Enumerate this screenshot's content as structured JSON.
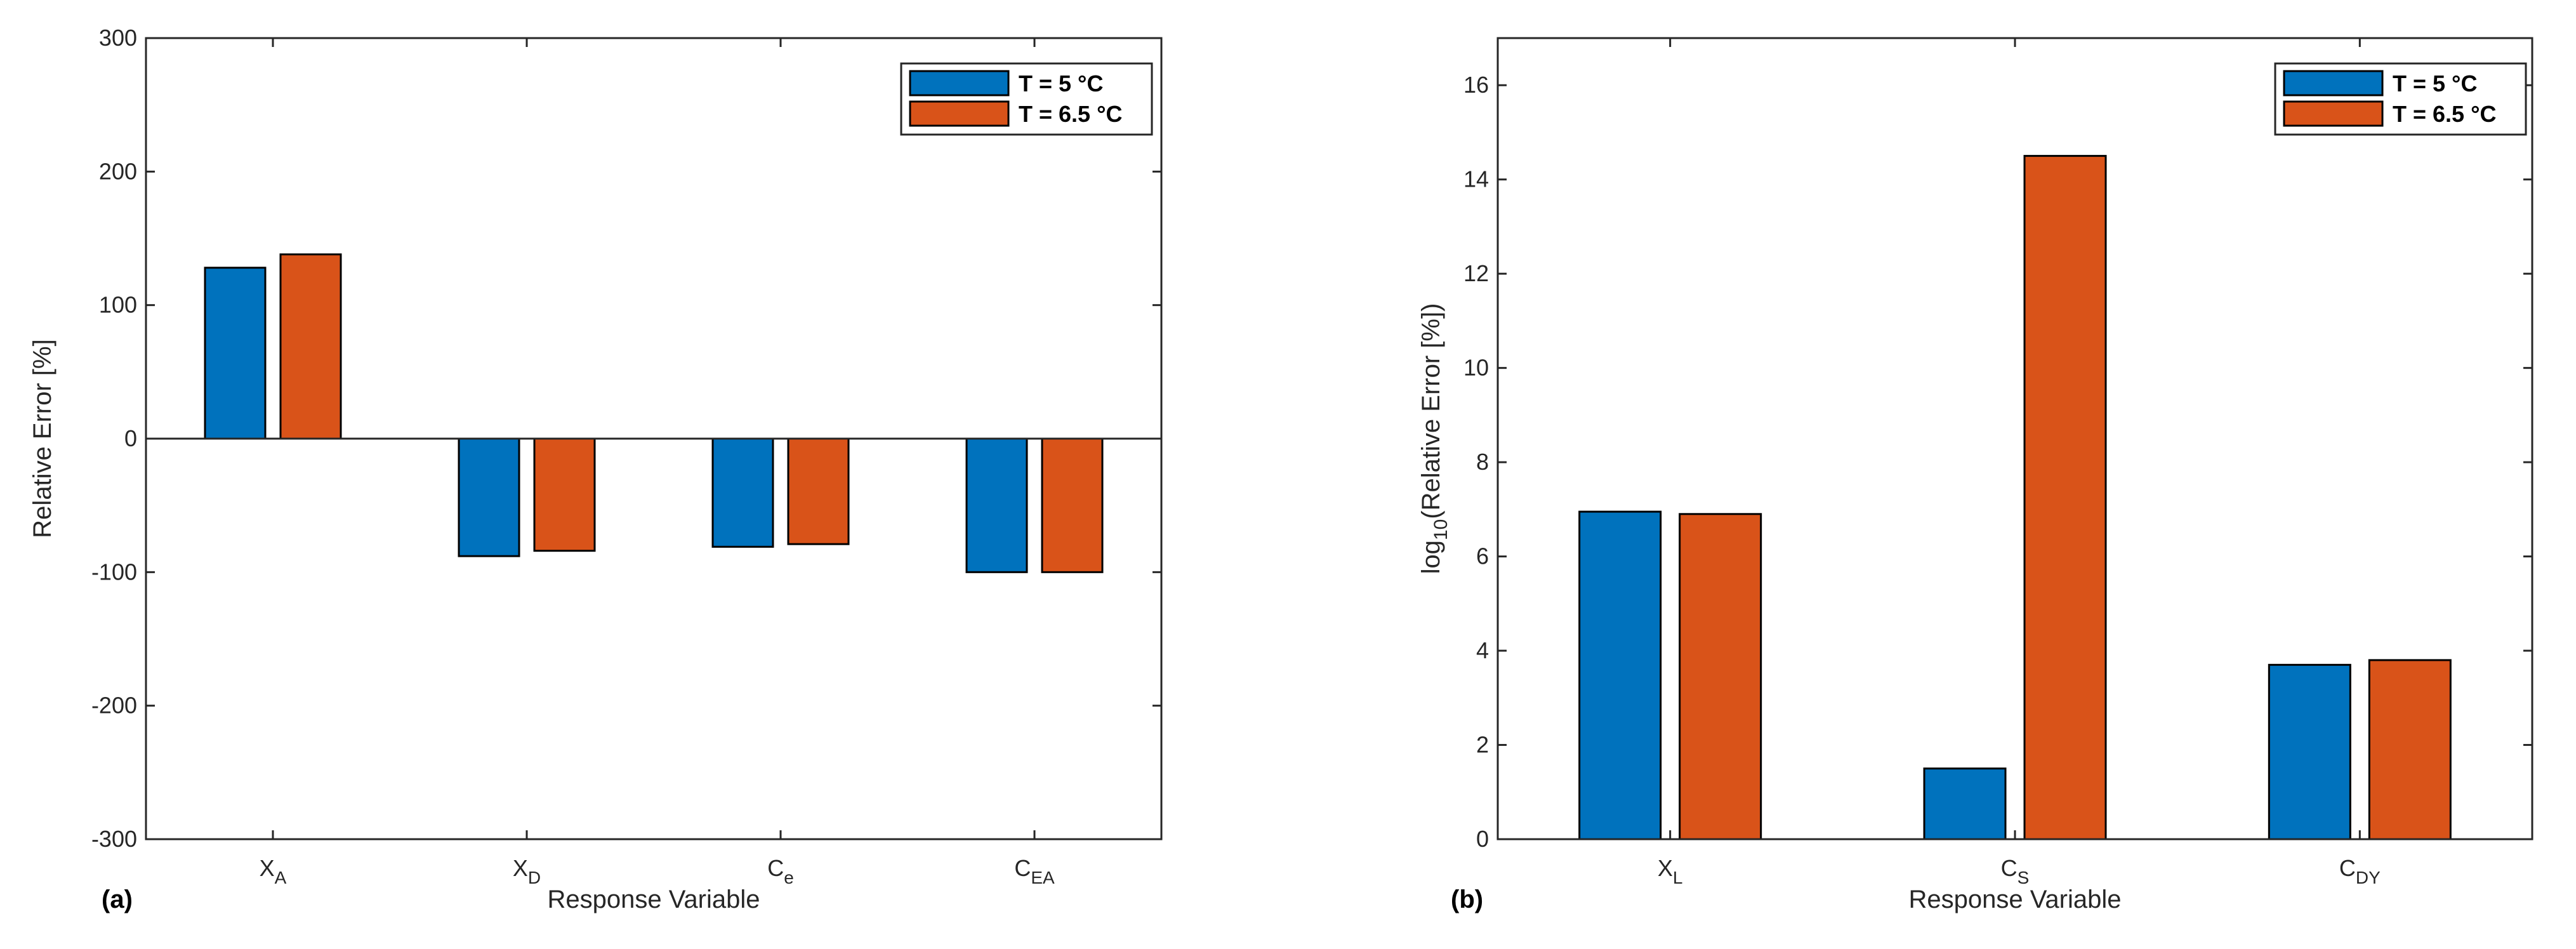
{
  "colors": {
    "series1": "#0072BD",
    "series2": "#D95319",
    "axis": "#262626",
    "bar_edge": "#000000"
  },
  "chart_data": [
    {
      "type": "bar",
      "panel_label": "(a)",
      "xlabel": "Response Variable",
      "ylabel": "Relative Error [%]",
      "ylim": [
        -300,
        300
      ],
      "yticks": [
        "-300",
        "-200",
        "-100",
        "0",
        "100",
        "200",
        "300"
      ],
      "categories": [
        {
          "main": "X",
          "sub": "A"
        },
        {
          "main": "X",
          "sub": "D"
        },
        {
          "main": "C",
          "sub": "e"
        },
        {
          "main": "C",
          "sub": "EA"
        }
      ],
      "series": [
        {
          "name": "T = 5 °C",
          "values": [
            128,
            -88,
            -81,
            -100
          ]
        },
        {
          "name": "T = 6.5 °C",
          "values": [
            138,
            -84,
            -79,
            -100
          ]
        }
      ],
      "legend_position": "top-right",
      "zero_line": true
    },
    {
      "type": "bar",
      "panel_label": "(b)",
      "xlabel": "Response Variable",
      "ylabel_prefix": "log",
      "ylabel_sub": "10",
      "ylabel_rest": "(Relative Error [%])",
      "ylim": [
        0,
        17
      ],
      "yticks": [
        "0",
        "2",
        "4",
        "6",
        "8",
        "10",
        "12",
        "14",
        "16"
      ],
      "categories": [
        {
          "main": "X",
          "sub": "L"
        },
        {
          "main": "C",
          "sub": "S"
        },
        {
          "main": "C",
          "sub": "DY"
        }
      ],
      "series": [
        {
          "name": "T = 5 °C",
          "values": [
            6.95,
            1.5,
            3.7
          ]
        },
        {
          "name": "T = 6.5 °C",
          "values": [
            6.9,
            14.5,
            3.8
          ]
        }
      ],
      "legend_position": "top-right",
      "zero_line": false
    }
  ]
}
